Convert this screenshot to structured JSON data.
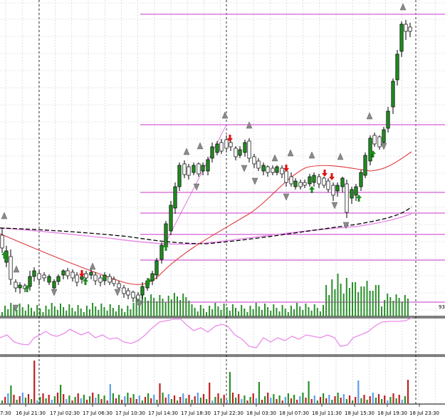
{
  "chart_data": {
    "type": "candlestick",
    "panes": [
      "price",
      "volume",
      "oscillator",
      "volume-histogram"
    ],
    "x_tick_labels": [
      "7:30",
      "16 Jul 21:30",
      "17 Jul 02:30",
      "17 Jul 06:30",
      "17 Jul 10:30",
      "17 Jul 14:30",
      "17 Jul 18:30",
      "17 Jul 22:30",
      "18 Jul 03:30",
      "18 Jul 07:30",
      "18 Jul 11:30",
      "18 Jul 15:30",
      "18 Jul 19:30",
      "18 Jul 23:30"
    ],
    "volume_pane_label": "93",
    "grid": true,
    "colors": {
      "background": "#ffffff",
      "grid": "#c9c9dd",
      "candle_up": "#1e8c1e",
      "candle_down": "#ffffff",
      "candle_outline": "#000000",
      "level_lines": "#d45fd4",
      "ma_fast": "#e0393b",
      "ma_slow": "#e98ce9",
      "ma_long": "#000000",
      "volume_bars": "#2a8f2a",
      "oscillator": "#e98ce9",
      "arrow_up": "#1e8c1e",
      "arrow_down": "#e01010",
      "fractal_marker": "#8a8a8a",
      "histogram_up": "#2a8f2a",
      "histogram_down": "#c02020",
      "histogram_blue": "#5aa0e8"
    }
  }
}
